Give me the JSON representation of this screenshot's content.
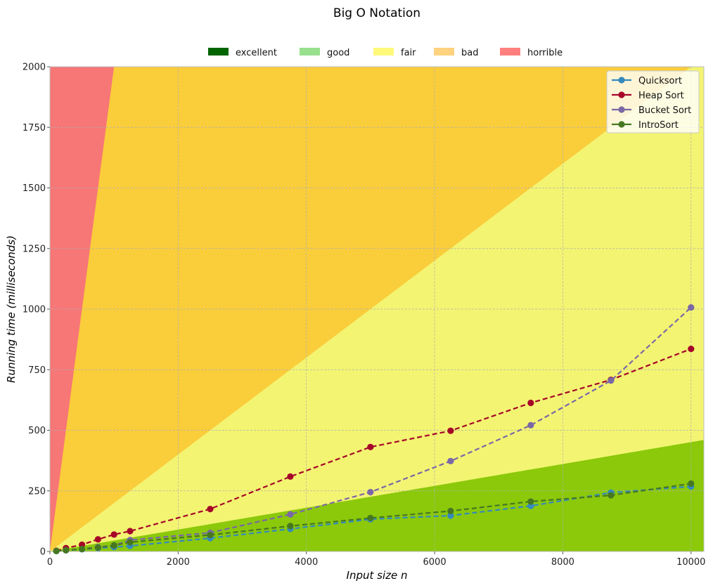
{
  "chart_data": {
    "type": "line",
    "title": "Big O Notation",
    "xlabel": "Input size n",
    "ylabel": "Running time (milliseconds)",
    "xlim": [
      0,
      10200
    ],
    "ylim": [
      0,
      2000
    ],
    "xticks": [
      0,
      2000,
      4000,
      6000,
      8000,
      10000
    ],
    "yticks": [
      0,
      250,
      500,
      750,
      1000,
      1250,
      1500,
      1750,
      2000
    ],
    "grid": true,
    "complexity_legend_position": "top-center",
    "series_legend_position": "top-right",
    "complexity_regions": [
      {
        "name": "excellent",
        "color": "#006400",
        "band_color": "#8bc90a"
      },
      {
        "name": "good",
        "color": "#98e08e",
        "band_color": "#c6ea45"
      },
      {
        "name": "fair",
        "color": "#fff97a",
        "band_color": "#f3f472"
      },
      {
        "name": "bad",
        "color": "#ffd27f",
        "band_color": "#facd3b"
      },
      {
        "name": "horrible",
        "color": "#ff7f7f",
        "band_color": "#f77676"
      }
    ],
    "region_boundaries": [
      {
        "label": "excellent/good",
        "points": [
          [
            0,
            0
          ],
          [
            10200,
            460
          ]
        ]
      },
      {
        "label": "good/fair",
        "points": [
          [
            0,
            0
          ],
          [
            10200,
            2040
          ]
        ]
      },
      {
        "label": "fair/bad",
        "points": [
          [
            0,
            0
          ],
          [
            4000,
            2000
          ]
        ]
      },
      {
        "label": "bad/horrible",
        "points": [
          [
            0,
            0
          ],
          [
            1000,
            2000
          ]
        ]
      }
    ],
    "series": [
      {
        "name": "Quicksort",
        "color": "#348abd",
        "points": [
          [
            100,
            2
          ],
          [
            250,
            5
          ],
          [
            500,
            9
          ],
          [
            750,
            14
          ],
          [
            1000,
            18
          ],
          [
            1250,
            23
          ],
          [
            2500,
            55
          ],
          [
            3750,
            93
          ],
          [
            5000,
            133
          ],
          [
            6250,
            148
          ],
          [
            7500,
            188
          ],
          [
            8750,
            243
          ],
          [
            10000,
            268
          ]
        ]
      },
      {
        "name": "Heap Sort",
        "color": "#a60628",
        "points": [
          [
            100,
            3
          ],
          [
            250,
            14
          ],
          [
            500,
            28
          ],
          [
            750,
            50
          ],
          [
            1000,
            70
          ],
          [
            1250,
            84
          ],
          [
            2500,
            175
          ],
          [
            3750,
            309
          ],
          [
            5000,
            431
          ],
          [
            6250,
            498
          ],
          [
            7500,
            613
          ],
          [
            8750,
            708
          ],
          [
            10000,
            836
          ]
        ]
      },
      {
        "name": "Bucket Sort",
        "color": "#7a68a6",
        "points": [
          [
            100,
            2
          ],
          [
            250,
            5
          ],
          [
            500,
            10
          ],
          [
            750,
            18
          ],
          [
            1000,
            25
          ],
          [
            1250,
            47
          ],
          [
            2500,
            77
          ],
          [
            3750,
            153
          ],
          [
            5000,
            245
          ],
          [
            6250,
            373
          ],
          [
            7500,
            521
          ],
          [
            8750,
            705
          ],
          [
            10000,
            1007
          ]
        ]
      },
      {
        "name": "IntroSort",
        "color": "#467821",
        "points": [
          [
            100,
            2
          ],
          [
            250,
            5
          ],
          [
            500,
            10
          ],
          [
            750,
            16
          ],
          [
            1000,
            25
          ],
          [
            1250,
            38
          ],
          [
            2500,
            68
          ],
          [
            3750,
            105
          ],
          [
            5000,
            138
          ],
          [
            6250,
            167
          ],
          [
            7500,
            206
          ],
          [
            8750,
            232
          ],
          [
            10000,
            280
          ]
        ]
      }
    ]
  }
}
